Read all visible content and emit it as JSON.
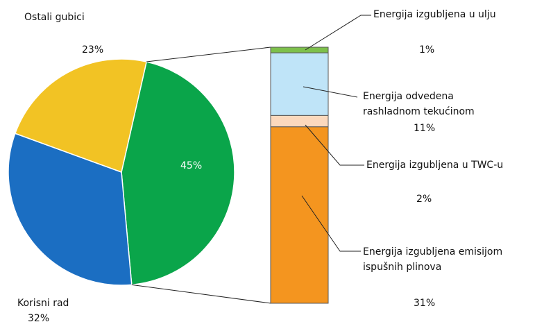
{
  "chart_data": {
    "type": "pie-of-bar",
    "categories": [
      null,
      "Korisni rad",
      "Ostali gubici"
    ],
    "values": [
      45,
      32,
      23
    ],
    "value_labels": [
      "45%",
      "32%",
      "23%"
    ],
    "colors": [
      "#0aa54a",
      "#1b6ec2",
      "#f2c324"
    ],
    "bar": {
      "categories": [
        "Energija izgubljena u ulju",
        "Energija odvedena rashladnom tekućinom",
        "Energija izgubljena u TWC-u",
        "Energija izgubljena emisijom ispušnih plinova"
      ],
      "values": [
        1,
        11,
        2,
        31
      ],
      "value_labels": [
        "1%",
        "11%",
        "2%",
        "31%"
      ],
      "colors": [
        "#7dc04b",
        "#bfe4f8",
        "#fcd9bd",
        "#f4951f"
      ]
    }
  }
}
